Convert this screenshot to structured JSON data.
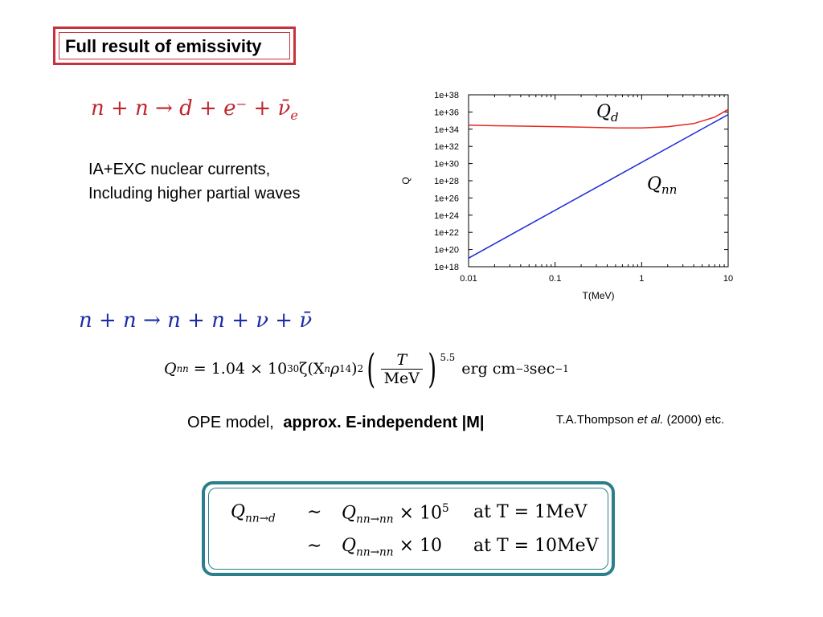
{
  "slide": {
    "title": "Full result of emissivity",
    "reaction_d": "n + n → d + e⁻ + ν̄",
    "reaction_d_sub": "e",
    "notes": [
      "IA+EXC nuclear currents,",
      "Including higher partial waves"
    ],
    "reaction_nn": "n + n → n + n + ν + ν̄",
    "formula": {
      "lhs": "Q",
      "lhs_sub": "nn",
      "eq_coef": "= 1.04 × 10",
      "eq_exp": "30",
      "zeta": "ζ(X",
      "zeta_sub": "n",
      "rho": "ρ",
      "rho_sub": "14",
      "close": ")",
      "sq": "2",
      "frac_num": "T",
      "frac_den": "MeV",
      "pow": "5.5",
      "unit_a": "erg cm",
      "unit_a_exp": "−3",
      "unit_b": "sec",
      "unit_b_exp": "−1"
    },
    "ope_label": "OPE model,",
    "ope_bold": "approx. E-independent |M|",
    "reference_a": "T.A.Thompson ",
    "reference_em": "et al.",
    "reference_b": " (2000)  etc.",
    "box": {
      "lhs": "Q",
      "lhs_sub": "nn→d",
      "sim": "∼",
      "row1_q": "Q",
      "row1_q_sub": "nn→nn",
      "row1_mul": "× 10",
      "row1_exp": "5",
      "row1_at": "at T = 1MeV",
      "row2_q": "Q",
      "row2_q_sub": "nn→nn",
      "row2_mul": "× 10",
      "row2_at": "at T = 10MeV"
    }
  },
  "chart_data": {
    "type": "line",
    "xscale": "log",
    "yscale": "log",
    "xlim": [
      0.01,
      10
    ],
    "ylim": [
      1e+18,
      1e+38
    ],
    "xlabel": "T(MeV)",
    "ylabel": "Q",
    "xticks": [
      "0.01",
      "0.1",
      "1",
      "10"
    ],
    "yticks": [
      "1e+18",
      "1e+20",
      "1e+22",
      "1e+24",
      "1e+26",
      "1e+28",
      "1e+30",
      "1e+32",
      "1e+34",
      "1e+36",
      "1e+38"
    ],
    "series": [
      {
        "name": "Q_d",
        "label_main": "Q",
        "label_sub": "d",
        "color": "#e8261c",
        "x": [
          0.01,
          0.02,
          0.05,
          0.1,
          0.2,
          0.5,
          1,
          2,
          4,
          7,
          10
        ],
        "y": [
          3e+34,
          2.5e+34,
          2.2e+34,
          2e+34,
          1.7e+34,
          1.4e+34,
          1.4e+34,
          1.9e+34,
          4.5e+34,
          2.5e+35,
          2e+36
        ]
      },
      {
        "name": "Q_nn",
        "label_main": "Q",
        "label_sub": "nn",
        "color": "#1a2ad8",
        "x": [
          0.01,
          10
        ],
        "y": [
          1e+19,
          5e+35
        ]
      }
    ]
  }
}
